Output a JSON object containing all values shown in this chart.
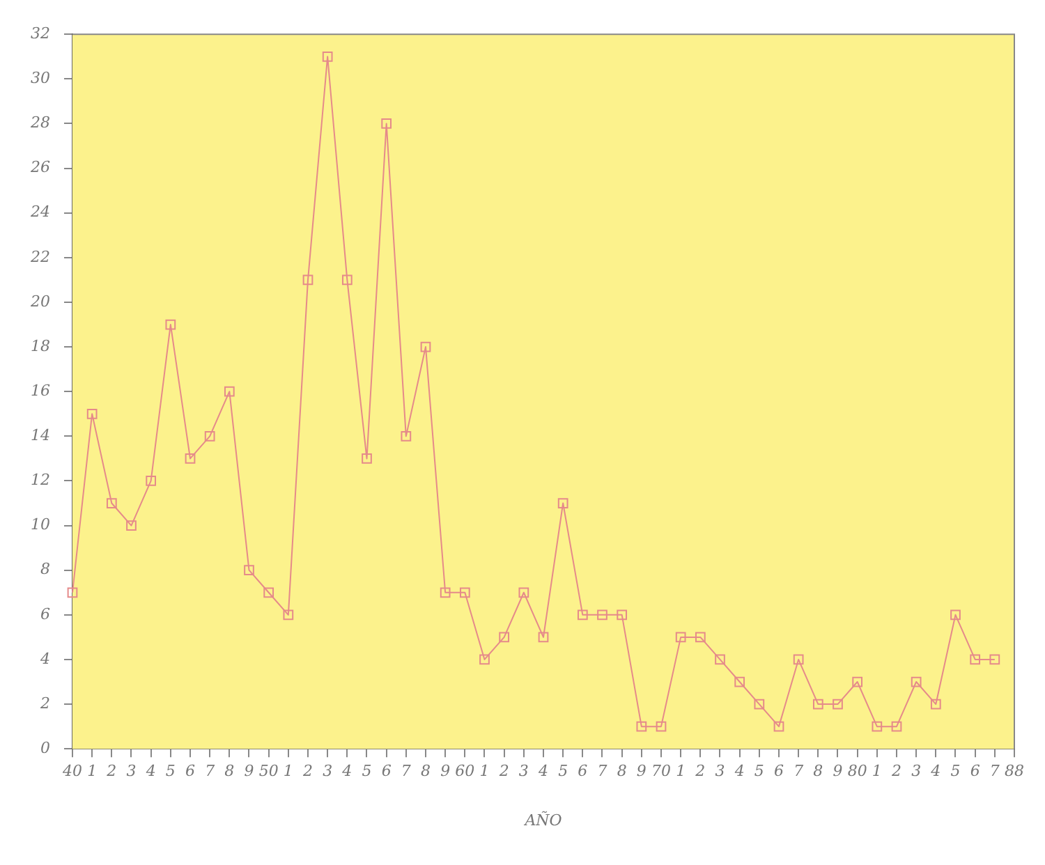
{
  "chart_data": {
    "type": "line",
    "xlabel": "AÑO",
    "categories": [
      "40",
      "1",
      "2",
      "3",
      "4",
      "5",
      "6",
      "7",
      "8",
      "9",
      "50",
      "1",
      "2",
      "3",
      "4",
      "5",
      "6",
      "7",
      "8",
      "9",
      "60",
      "1",
      "2",
      "3",
      "4",
      "5",
      "6",
      "7",
      "8",
      "9",
      "70",
      "1",
      "2",
      "3",
      "4",
      "5",
      "6",
      "7",
      "8",
      "9",
      "80",
      "1",
      "2",
      "3",
      "4",
      "5",
      "6",
      "7",
      "88"
    ],
    "series": [
      {
        "color": "#e58a8a",
        "values": [
          7,
          15,
          11,
          10,
          12,
          19,
          13,
          14,
          16,
          8,
          7,
          6,
          21,
          31,
          21,
          13,
          28,
          14,
          18,
          7,
          7,
          4,
          5,
          7,
          5,
          11,
          6,
          6,
          6,
          1,
          1,
          5,
          5,
          4,
          3,
          2,
          1,
          4,
          2,
          2,
          3,
          1,
          1,
          3,
          2,
          6,
          4,
          4,
          null
        ]
      }
    ],
    "ylim": [
      0,
      32
    ],
    "yticks": [
      0,
      2,
      4,
      6,
      8,
      10,
      12,
      14,
      16,
      18,
      20,
      22,
      24,
      26,
      28,
      30,
      32
    ],
    "grid": false,
    "legend": false,
    "marker": "square",
    "line_style": "solid"
  }
}
